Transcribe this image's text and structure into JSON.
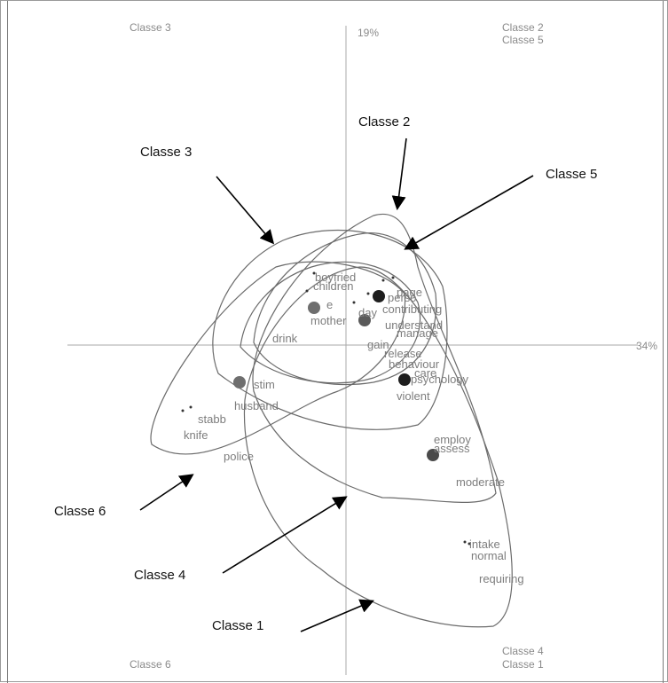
{
  "chart_data": {
    "type": "scatter",
    "title": "",
    "axis_percentages": {
      "x": "34%",
      "y": "19%"
    },
    "corner_labels": {
      "top_left": [
        "Classe 3"
      ],
      "top_right": [
        "Classe 2",
        "Classe 5"
      ],
      "bottom_left": [
        "Classe 6"
      ],
      "bottom_right": [
        "Classe 4",
        "Classe 1"
      ]
    },
    "class_callouts": [
      "Classe 2",
      "Classe 3",
      "Classe 5",
      "Classe 6",
      "Classe 4",
      "Classe 1"
    ],
    "centroids": [
      {
        "class": "Classe 3",
        "color": "#6e6e6e"
      },
      {
        "class": "Classe 2",
        "color": "#1e1e1e"
      },
      {
        "class": "Classe 5",
        "color": "#5a5a5a"
      },
      {
        "class": "Classe 6",
        "color": "#6e6e6e"
      },
      {
        "class": "Classe 4",
        "color": "#1e1e1e"
      },
      {
        "class": "Classe 1",
        "color": "#4a4a4a"
      }
    ],
    "words": [
      "boyfried",
      "children",
      "e",
      "mother",
      "drink",
      "day",
      "perso",
      "page",
      "contributing",
      "understand",
      "manage",
      "gain",
      "release",
      "behaviour",
      "psychology",
      "care",
      "violent",
      "stim",
      "husband",
      "stabb",
      "knife",
      "police",
      "employ",
      "assess",
      "moderate",
      "intake",
      "normal",
      "requiring"
    ],
    "grid": false,
    "colors": {
      "axis": "#a8a8a8",
      "ellipse": "#6b6b6b",
      "word": "#7d7d7d"
    }
  }
}
